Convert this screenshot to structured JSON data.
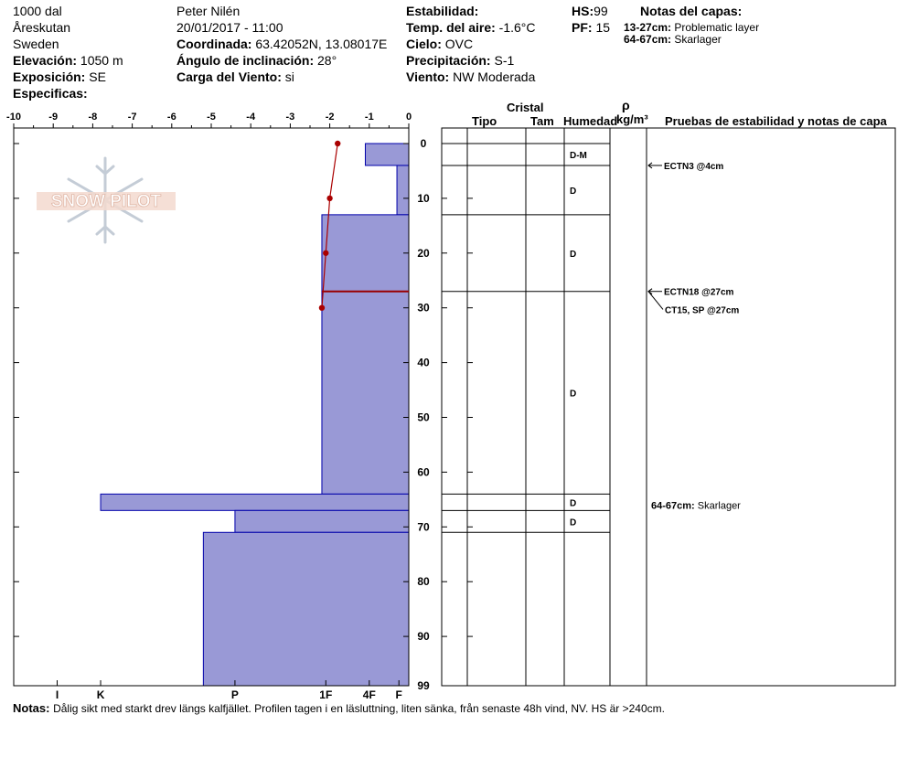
{
  "header": {
    "site": "1000 dal",
    "location": "Åreskutan",
    "country": "Sweden",
    "elevation_label": "Elevación:",
    "elevation_value": "1050 m",
    "exposure_label": "Exposición:",
    "exposure_value": "SE",
    "specifics_label": "Especificas:",
    "observer": "Peter Nilén",
    "datetime": "20/01/2017 - 11:00",
    "coord_label": "Coordinada:",
    "coord_value": "63.42052N, 13.08017E",
    "incline_label": "Ángulo de inclinación:",
    "incline_value": "28°",
    "wind_load_label": "Carga del Viento:",
    "wind_load_value": "si",
    "stability_label": "Estabilidad:",
    "air_temp_label": "Temp. del aire:",
    "air_temp_value": "-1.6°C",
    "sky_label": "Cielo:",
    "sky_value": "OVC",
    "precip_label": "Precipitación:",
    "precip_value": "S-1",
    "wind_label": "Viento:",
    "wind_value": "NW Moderada",
    "hs_label": "HS:",
    "hs_value": "99",
    "pf_label": "PF:",
    "pf_value": "15",
    "layer_notes_title": "Notas del capas:",
    "layer_notes": [
      {
        "range": "13-27cm:",
        "text": "Problematic layer"
      },
      {
        "range": "64-67cm:",
        "text": "Skarlager"
      }
    ]
  },
  "columns": {
    "cristal": "Cristal",
    "tipo": "Tipo",
    "tam": "Tam",
    "humedad": "Humedad",
    "rho": "ρ",
    "rho_unit": "kg/m³",
    "tests_title": "Pruebas de estabilidad y notas de capa"
  },
  "logo_text": "SNOW PILOT",
  "notes": {
    "label": "Notas:",
    "text": "Dålig sikt med starkt drev längs kalfjället. Profilen tagen i en läsluttning, liten sänka, från senaste 48h vind, NV. HS är >240cm."
  },
  "colors": {
    "hardness_fill": "#9999d6",
    "hardness_stroke": "#0000aa",
    "temp_line": "#aa0000",
    "problem_line": "#990000"
  },
  "chart_data": {
    "type": "snow-profile",
    "temp_axis": {
      "min": -10,
      "max": 0,
      "ticks": [
        "-10",
        "-9",
        "-8",
        "-7",
        "-6",
        "-5",
        "-4",
        "-3",
        "-2",
        "-1",
        "0"
      ]
    },
    "depth_axis": {
      "min": 0,
      "max": 99,
      "ticks": [
        "0",
        "10",
        "20",
        "30",
        "40",
        "50",
        "60",
        "70",
        "80",
        "90",
        "99"
      ]
    },
    "hardness_axis": {
      "labels": [
        "I",
        "K",
        "P",
        "1F",
        "4F",
        "F"
      ],
      "values": [
        8.9,
        7.8,
        4.4,
        2.1,
        1.0,
        0.25
      ]
    },
    "hardness_layers": [
      {
        "top": 0,
        "bottom": 4,
        "hardness": 1.1
      },
      {
        "top": 4,
        "bottom": 13,
        "hardness": 0.3
      },
      {
        "top": 13,
        "bottom": 27,
        "hardness": 2.2
      },
      {
        "top": 27,
        "bottom": 64,
        "hardness": 2.2
      },
      {
        "top": 64,
        "bottom": 67,
        "hardness": 7.8
      },
      {
        "top": 67,
        "bottom": 71,
        "hardness": 4.4
      },
      {
        "top": 71,
        "bottom": 99,
        "hardness": 5.2
      }
    ],
    "temperature_profile": [
      {
        "depth": 0,
        "temp": -1.8
      },
      {
        "depth": 10,
        "temp": -2.0
      },
      {
        "depth": 20,
        "temp": -2.1
      },
      {
        "depth": 30,
        "temp": -2.2
      }
    ],
    "problem_layer_depth": 27,
    "layer_boundaries": [
      0,
      4,
      13,
      27,
      64,
      67,
      71
    ],
    "moisture": [
      {
        "depth": 2,
        "label": "D-M"
      },
      {
        "depth": 8.5,
        "label": "D"
      },
      {
        "depth": 20,
        "label": "D"
      },
      {
        "depth": 45.5,
        "label": "D"
      },
      {
        "depth": 65.5,
        "label": "D"
      },
      {
        "depth": 69,
        "label": "D"
      }
    ],
    "stability_tests": [
      {
        "depth": 4,
        "label": "ECTN3 @4cm",
        "text_depth": 4
      },
      {
        "depth": 27,
        "label": "ECTN18 @27cm",
        "text_depth": 27
      },
      {
        "depth": 27,
        "label": "CT15, SP @27cm",
        "text_depth": 30.3
      }
    ],
    "layer_note_marks": [
      {
        "depth": 66,
        "range": "64-67cm:",
        "text": "Skarlager"
      }
    ]
  }
}
